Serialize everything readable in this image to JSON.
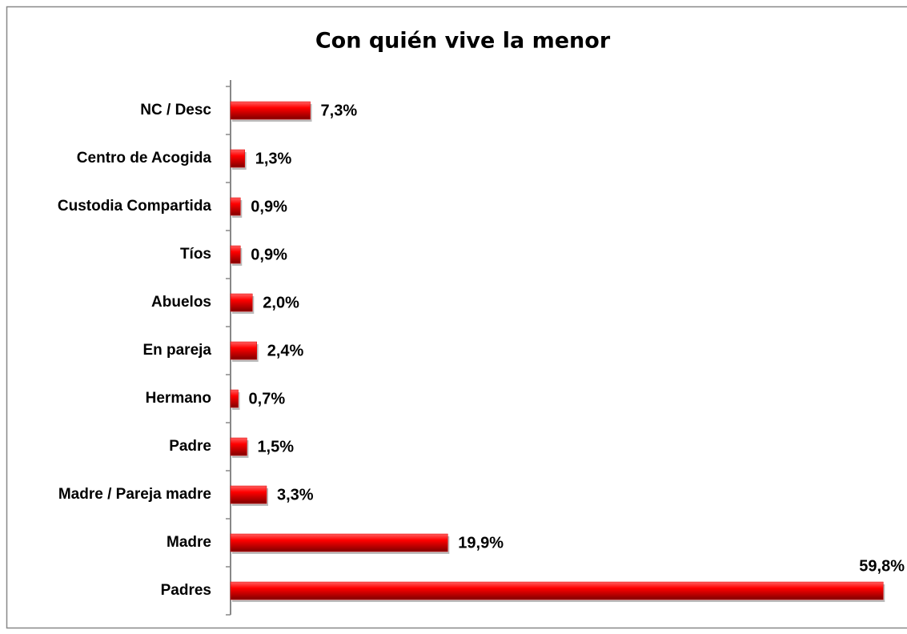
{
  "chart_data": {
    "type": "bar",
    "orientation": "horizontal",
    "title": "Con quién vive la menor",
    "categories": [
      "NC / Desc",
      "Centro de Acogida",
      "Custodia Compartida",
      "Tíos",
      "Abuelos",
      "En pareja",
      "Hermano",
      "Padre",
      "Madre / Pareja madre",
      "Madre",
      "Padres"
    ],
    "values": [
      7.3,
      1.3,
      0.9,
      0.9,
      2.0,
      2.4,
      0.7,
      1.5,
      3.3,
      19.9,
      59.8
    ],
    "value_labels": [
      "7,3%",
      "1,3%",
      "0,9%",
      "0,9%",
      "2,0%",
      "2,4%",
      "0,7%",
      "1,5%",
      "3,3%",
      "19,9%",
      "59,8%"
    ],
    "color": "#e00000",
    "xlim": [
      0,
      60
    ]
  }
}
